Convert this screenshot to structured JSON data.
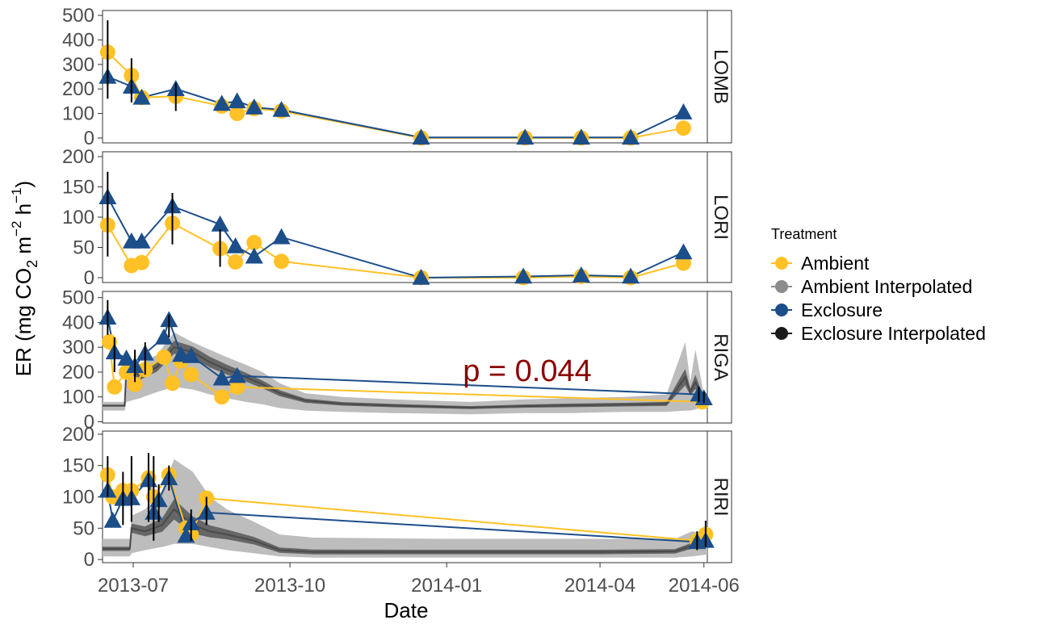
{
  "chart_data": {
    "type": "line",
    "xlabel": "Date",
    "ylabel": {
      "prefix": "ER  (mg  CO",
      "sub": "2",
      "mid1": "  m",
      "sup1": "−2",
      "mid2": "  h",
      "sup2": "−1",
      "suffix": ")"
    },
    "x_range": [
      "2013-06-13",
      "2014-06-03"
    ],
    "x_ticks": [
      "2013-07-01",
      "2013-10-01",
      "2014-01-01",
      "2014-04-01",
      "2014-06-01"
    ],
    "x_tick_labels": [
      "2013-07",
      "2013-10",
      "2014-01",
      "2014-04",
      "2014-06"
    ],
    "legend": {
      "title": "Treatment",
      "position": "right",
      "items": [
        {
          "label": "Ambient",
          "color": "#FFC125"
        },
        {
          "label": "Ambient Interpolated",
          "color": "#8C8C8C"
        },
        {
          "label": "Exclosure",
          "color": "#1C4E8A"
        },
        {
          "label": "Exclosure Interpolated",
          "color": "#1A1A1A"
        }
      ]
    },
    "colors": {
      "ambient": "#FFC125",
      "exclosure": "#1C4E8A",
      "ambient_band": "#BDBDBD",
      "exclosure_band": "#666666",
      "errorbar": "#000000",
      "annotation": "#8B0000"
    },
    "panels": [
      {
        "strip": "LOMB",
        "ylim": [
          -20,
          520
        ],
        "yticks": [
          0,
          100,
          200,
          300,
          400,
          500
        ],
        "ytick_labels": [
          "0",
          "100",
          "200",
          "300",
          "400",
          "500"
        ],
        "ambient": [
          {
            "x": "2013-06-16",
            "y": 350,
            "lo": 215,
            "hi": 480
          },
          {
            "x": "2013-06-30",
            "y": 255,
            "lo": 175,
            "hi": 325
          },
          {
            "x": "2013-07-06",
            "y": 165
          },
          {
            "x": "2013-07-26",
            "y": 170,
            "lo": 110,
            "hi": 225
          },
          {
            "x": "2013-08-22",
            "y": 130
          },
          {
            "x": "2013-08-31",
            "y": 100
          },
          {
            "x": "2013-09-10",
            "y": 120
          },
          {
            "x": "2013-09-26",
            "y": 110
          },
          {
            "x": "2013-12-17",
            "y": 0
          },
          {
            "x": "2014-02-16",
            "y": 0
          },
          {
            "x": "2014-03-21",
            "y": 0
          },
          {
            "x": "2014-04-19",
            "y": 0
          },
          {
            "x": "2014-05-20",
            "y": 40
          }
        ],
        "exclosure": [
          {
            "x": "2013-06-16",
            "y": 250,
            "lo": 160,
            "hi": 340
          },
          {
            "x": "2013-06-30",
            "y": 210,
            "lo": 145,
            "hi": 275
          },
          {
            "x": "2013-07-06",
            "y": 165
          },
          {
            "x": "2013-07-26",
            "y": 200
          },
          {
            "x": "2013-08-22",
            "y": 140
          },
          {
            "x": "2013-08-31",
            "y": 150
          },
          {
            "x": "2013-09-10",
            "y": 125
          },
          {
            "x": "2013-09-26",
            "y": 115
          },
          {
            "x": "2013-12-17",
            "y": 2
          },
          {
            "x": "2014-02-16",
            "y": 2
          },
          {
            "x": "2014-03-21",
            "y": 2
          },
          {
            "x": "2014-04-19",
            "y": 2
          },
          {
            "x": "2014-05-20",
            "y": 105
          }
        ]
      },
      {
        "strip": "LORI",
        "ylim": [
          -8,
          208
        ],
        "yticks": [
          0,
          50,
          100,
          150,
          200
        ],
        "ytick_labels": [
          "0",
          "50",
          "100",
          "150",
          "200"
        ],
        "ambient": [
          {
            "x": "2013-06-16",
            "y": 87,
            "lo": 35,
            "hi": 135
          },
          {
            "x": "2013-06-30",
            "y": 20
          },
          {
            "x": "2013-07-06",
            "y": 25
          },
          {
            "x": "2013-07-24",
            "y": 90,
            "lo": 55,
            "hi": 130
          },
          {
            "x": "2013-08-21",
            "y": 48,
            "lo": 18,
            "hi": 80
          },
          {
            "x": "2013-08-30",
            "y": 26
          },
          {
            "x": "2013-09-10",
            "y": 58
          },
          {
            "x": "2013-09-26",
            "y": 27
          },
          {
            "x": "2013-12-17",
            "y": 0
          },
          {
            "x": "2014-02-15",
            "y": 0
          },
          {
            "x": "2014-03-21",
            "y": 2
          },
          {
            "x": "2014-04-19",
            "y": 0
          },
          {
            "x": "2014-05-20",
            "y": 24
          }
        ],
        "exclosure": [
          {
            "x": "2013-06-16",
            "y": 133,
            "lo": 95,
            "hi": 175
          },
          {
            "x": "2013-06-30",
            "y": 60
          },
          {
            "x": "2013-07-06",
            "y": 60
          },
          {
            "x": "2013-07-24",
            "y": 118,
            "lo": 95,
            "hi": 140
          },
          {
            "x": "2013-08-21",
            "y": 88
          },
          {
            "x": "2013-08-30",
            "y": 52
          },
          {
            "x": "2013-09-10",
            "y": 35
          },
          {
            "x": "2013-09-26",
            "y": 67
          },
          {
            "x": "2013-12-17",
            "y": 0
          },
          {
            "x": "2014-02-15",
            "y": 2
          },
          {
            "x": "2014-03-21",
            "y": 4
          },
          {
            "x": "2014-04-19",
            "y": 2
          },
          {
            "x": "2014-05-20",
            "y": 42
          }
        ]
      },
      {
        "strip": "RIGA",
        "ylim": [
          -5,
          525
        ],
        "yticks": [
          0,
          100,
          200,
          300,
          400,
          500
        ],
        "ytick_labels": [
          "0",
          "100",
          "200",
          "300",
          "400",
          "500"
        ],
        "annotation": "p = 0.044",
        "interp_band": [
          {
            "x": "2013-06-13",
            "lo": 45,
            "hi": 80,
            "ex": 65
          },
          {
            "x": "2013-06-26",
            "lo": 45,
            "hi": 80,
            "ex": 65
          },
          {
            "x": "2013-06-27",
            "lo": 80,
            "hi": 220,
            "ex": 220
          },
          {
            "x": "2013-07-05",
            "lo": 95,
            "hi": 230,
            "ex": 185
          },
          {
            "x": "2013-07-15",
            "lo": 120,
            "hi": 270,
            "ex": 220
          },
          {
            "x": "2013-07-25",
            "lo": 140,
            "hi": 360,
            "ex": 300
          },
          {
            "x": "2013-08-05",
            "lo": 130,
            "hi": 320,
            "ex": 280
          },
          {
            "x": "2013-08-15",
            "lo": 110,
            "hi": 290,
            "ex": 240
          },
          {
            "x": "2013-08-25",
            "lo": 95,
            "hi": 260,
            "ex": 210
          },
          {
            "x": "2013-09-05",
            "lo": 80,
            "hi": 230,
            "ex": 180
          },
          {
            "x": "2013-09-15",
            "lo": 70,
            "hi": 200,
            "ex": 150
          },
          {
            "x": "2013-09-25",
            "lo": 55,
            "hi": 155,
            "ex": 115
          },
          {
            "x": "2013-10-10",
            "lo": 45,
            "hi": 115,
            "ex": 85
          },
          {
            "x": "2013-11-01",
            "lo": 40,
            "hi": 100,
            "ex": 72
          },
          {
            "x": "2013-12-01",
            "lo": 35,
            "hi": 90,
            "ex": 65
          },
          {
            "x": "2014-01-15",
            "lo": 30,
            "hi": 80,
            "ex": 57
          },
          {
            "x": "2014-02-15",
            "lo": 35,
            "hi": 90,
            "ex": 63
          },
          {
            "x": "2014-03-15",
            "lo": 35,
            "hi": 95,
            "ex": 66
          },
          {
            "x": "2014-04-15",
            "lo": 40,
            "hi": 100,
            "ex": 69
          },
          {
            "x": "2014-05-10",
            "lo": 40,
            "hi": 110,
            "ex": 72
          },
          {
            "x": "2014-05-21",
            "lo": 45,
            "hi": 320,
            "ex": 180
          },
          {
            "x": "2014-05-24",
            "lo": 45,
            "hi": 160,
            "ex": 120
          },
          {
            "x": "2014-05-27",
            "lo": 50,
            "hi": 290,
            "ex": 160
          },
          {
            "x": "2014-06-01",
            "lo": 60,
            "hi": 110,
            "ex": 90
          }
        ],
        "ambient": [
          {
            "x": "2013-06-17",
            "y": 322
          },
          {
            "x": "2013-06-20",
            "y": 140
          },
          {
            "x": "2013-06-27",
            "y": 200
          },
          {
            "x": "2013-07-02",
            "y": 150
          },
          {
            "x": "2013-07-08",
            "y": 210
          },
          {
            "x": "2013-07-19",
            "y": 260
          },
          {
            "x": "2013-07-24",
            "y": 155
          },
          {
            "x": "2013-07-29",
            "y": 245
          },
          {
            "x": "2013-08-04",
            "y": 190
          },
          {
            "x": "2013-08-22",
            "y": 100
          },
          {
            "x": "2013-08-31",
            "y": 140
          },
          {
            "x": "2014-05-31",
            "y": 80
          }
        ],
        "exclosure": [
          {
            "x": "2013-06-16",
            "y": 420,
            "lo": 350,
            "hi": 490
          },
          {
            "x": "2013-06-20",
            "y": 280,
            "lo": 200,
            "hi": 340
          },
          {
            "x": "2013-06-27",
            "y": 255
          },
          {
            "x": "2013-07-02",
            "y": 225,
            "lo": 160,
            "hi": 290
          },
          {
            "x": "2013-07-08",
            "y": 275,
            "lo": 190,
            "hi": 320
          },
          {
            "x": "2013-07-19",
            "y": 340
          },
          {
            "x": "2013-07-22",
            "y": 410,
            "lo": 340,
            "hi": 430
          },
          {
            "x": "2013-07-29",
            "y": 270
          },
          {
            "x": "2013-08-04",
            "y": 265
          },
          {
            "x": "2013-08-22",
            "y": 175
          },
          {
            "x": "2013-08-31",
            "y": 185
          },
          {
            "x": "2014-05-29",
            "y": 110,
            "lo": 80,
            "hi": 140
          },
          {
            "x": "2014-06-01",
            "y": 95,
            "lo": 75,
            "hi": 120
          }
        ]
      },
      {
        "strip": "RIRI",
        "ylim": [
          -5,
          205
        ],
        "yticks": [
          0,
          50,
          100,
          150,
          200
        ],
        "ytick_labels": [
          "0",
          "50",
          "100",
          "150",
          "200"
        ],
        "interp_band": [
          {
            "x": "2013-06-13",
            "lo": 5,
            "hi": 33,
            "ex": 17
          },
          {
            "x": "2013-06-29",
            "lo": 5,
            "hi": 33,
            "ex": 17
          },
          {
            "x": "2013-06-30",
            "lo": 10,
            "hi": 70,
            "ex": 50
          },
          {
            "x": "2013-07-08",
            "lo": 15,
            "hi": 80,
            "ex": 45
          },
          {
            "x": "2013-07-18",
            "lo": 20,
            "hi": 110,
            "ex": 55
          },
          {
            "x": "2013-07-25",
            "lo": 25,
            "hi": 160,
            "ex": 80
          },
          {
            "x": "2013-08-05",
            "lo": 25,
            "hi": 140,
            "ex": 55
          },
          {
            "x": "2013-08-15",
            "lo": 20,
            "hi": 100,
            "ex": 45
          },
          {
            "x": "2013-08-25",
            "lo": 15,
            "hi": 80,
            "ex": 40
          },
          {
            "x": "2013-09-10",
            "lo": 10,
            "hi": 60,
            "ex": 30
          },
          {
            "x": "2013-09-25",
            "lo": 5,
            "hi": 40,
            "ex": 15
          },
          {
            "x": "2013-10-15",
            "lo": 3,
            "hi": 35,
            "ex": 12
          },
          {
            "x": "2014-01-01",
            "lo": 3,
            "hi": 33,
            "ex": 12
          },
          {
            "x": "2014-04-01",
            "lo": 3,
            "hi": 33,
            "ex": 12
          },
          {
            "x": "2014-05-15",
            "lo": 3,
            "hi": 33,
            "ex": 13
          },
          {
            "x": "2014-05-25",
            "lo": 5,
            "hi": 45,
            "ex": 22
          },
          {
            "x": "2014-06-03",
            "lo": 8,
            "hi": 40,
            "ex": 30
          }
        ],
        "ambient": [
          {
            "x": "2013-06-16",
            "y": 135,
            "lo": 100,
            "hi": 165
          },
          {
            "x": "2013-06-19",
            "y": 100
          },
          {
            "x": "2013-06-25",
            "y": 110
          },
          {
            "x": "2013-06-30",
            "y": 110
          },
          {
            "x": "2013-07-10",
            "y": 130
          },
          {
            "x": "2013-07-13",
            "y": 100
          },
          {
            "x": "2013-07-22",
            "y": 135
          },
          {
            "x": "2013-08-01",
            "y": 50
          },
          {
            "x": "2013-08-04",
            "y": 40
          },
          {
            "x": "2013-08-13",
            "y": 98
          },
          {
            "x": "2014-05-28",
            "y": 30
          },
          {
            "x": "2014-06-02",
            "y": 40
          }
        ],
        "exclosure": [
          {
            "x": "2013-06-16",
            "y": 110
          },
          {
            "x": "2013-06-19",
            "y": 62
          },
          {
            "x": "2013-06-25",
            "y": 97,
            "lo": 55,
            "hi": 140
          },
          {
            "x": "2013-06-30",
            "y": 98,
            "lo": 60,
            "hi": 165
          },
          {
            "x": "2013-07-10",
            "y": 127,
            "lo": 60,
            "hi": 170
          },
          {
            "x": "2013-07-13",
            "y": 75,
            "lo": 30,
            "hi": 165
          },
          {
            "x": "2013-07-16",
            "y": 95,
            "lo": 60,
            "hi": 120
          },
          {
            "x": "2013-07-22",
            "y": 130,
            "lo": 110,
            "hi": 150
          },
          {
            "x": "2013-08-01",
            "y": 38
          },
          {
            "x": "2013-08-04",
            "y": 58,
            "lo": 30,
            "hi": 80
          },
          {
            "x": "2013-08-13",
            "y": 75,
            "lo": 55,
            "hi": 100
          },
          {
            "x": "2014-05-28",
            "y": 28,
            "lo": 15,
            "hi": 45
          },
          {
            "x": "2014-06-02",
            "y": 30,
            "lo": 20,
            "hi": 62
          }
        ]
      }
    ]
  }
}
